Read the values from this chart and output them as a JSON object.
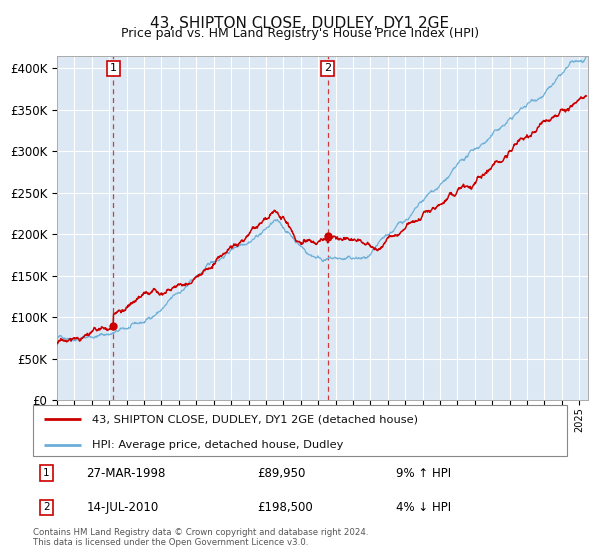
{
  "title": "43, SHIPTON CLOSE, DUDLEY, DY1 2GE",
  "subtitle": "Price paid vs. HM Land Registry's House Price Index (HPI)",
  "background_color": "#dce9f5",
  "grid_color": "#ffffff",
  "hpi_color": "#6baed6",
  "price_color": "#cc0000",
  "marker_color": "#cc0000",
  "dashed_line_color": "#cc0000",
  "sale1_date_num": 1998.23,
  "sale1_price": 89950,
  "sale1_date_str": "27-MAR-1998",
  "sale1_pct": "9% ↑ HPI",
  "sale2_date_num": 2010.54,
  "sale2_price": 198500,
  "sale2_date_str": "14-JUL-2010",
  "sale2_pct": "4% ↓ HPI",
  "legend_line1": "43, SHIPTON CLOSE, DUDLEY, DY1 2GE (detached house)",
  "legend_line2": "HPI: Average price, detached house, Dudley",
  "footnote": "Contains HM Land Registry data © Crown copyright and database right 2024.\nThis data is licensed under the Open Government Licence v3.0.",
  "title_fontsize": 11,
  "subtitle_fontsize": 9,
  "tick_fontsize": 8.5
}
